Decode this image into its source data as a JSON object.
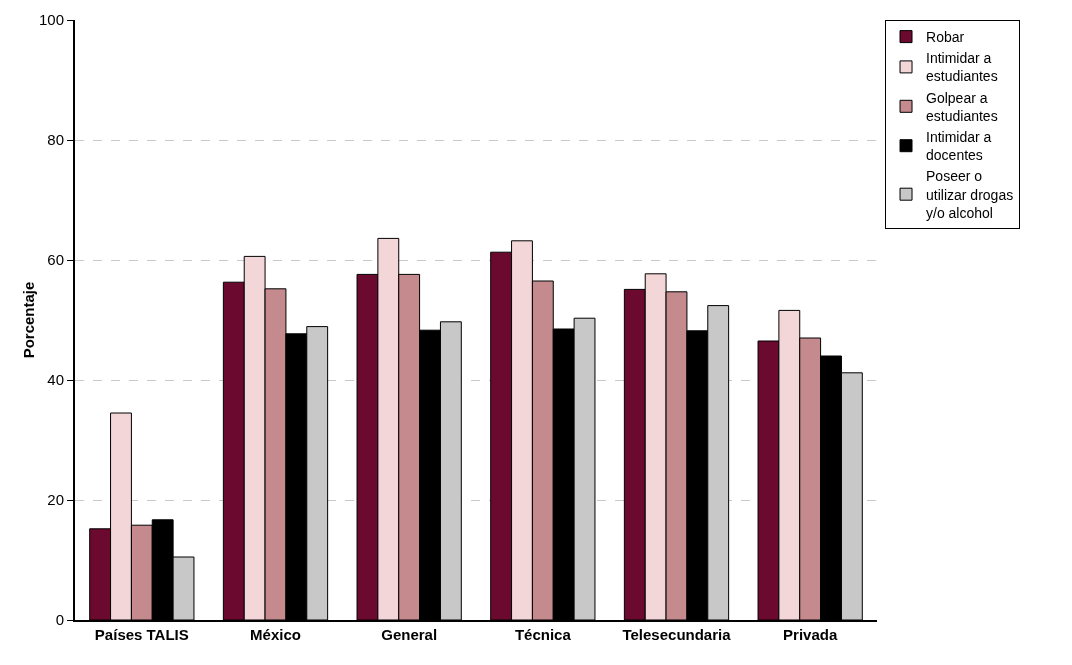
{
  "chart_data": {
    "type": "bar",
    "ylabel": "Porcentaje",
    "categories": [
      "Países TALIS",
      "México",
      "General",
      "Técnica",
      "Telesecundaria",
      "Privada"
    ],
    "series": [
      {
        "name": "Robar",
        "color": "#6b0a2e",
        "values": [
          15.2,
          56.3,
          57.6,
          61.3,
          55.1,
          46.5
        ]
      },
      {
        "name": "Intimidar a estudiantes",
        "color": "#f2d6d8",
        "values": [
          34.5,
          60.6,
          63.6,
          63.2,
          57.7,
          51.6
        ]
      },
      {
        "name": "Golpear a estudiantes",
        "color": "#c48a8e",
        "values": [
          15.8,
          55.2,
          57.6,
          56.5,
          54.7,
          47.0
        ]
      },
      {
        "name": "Intimidar a docentes",
        "color": "#000000",
        "values": [
          16.7,
          47.7,
          48.3,
          48.5,
          48.2,
          44.0
        ]
      },
      {
        "name": "Poseer o utilizar drogas y/o alcohol",
        "color": "#c8c8c8",
        "values": [
          10.5,
          48.9,
          49.7,
          50.3,
          52.4,
          41.2
        ]
      }
    ],
    "ylim": [
      0,
      100
    ],
    "yticks": [
      0,
      20,
      40,
      60,
      80,
      100
    ],
    "grid": "y",
    "legend": "top right"
  }
}
